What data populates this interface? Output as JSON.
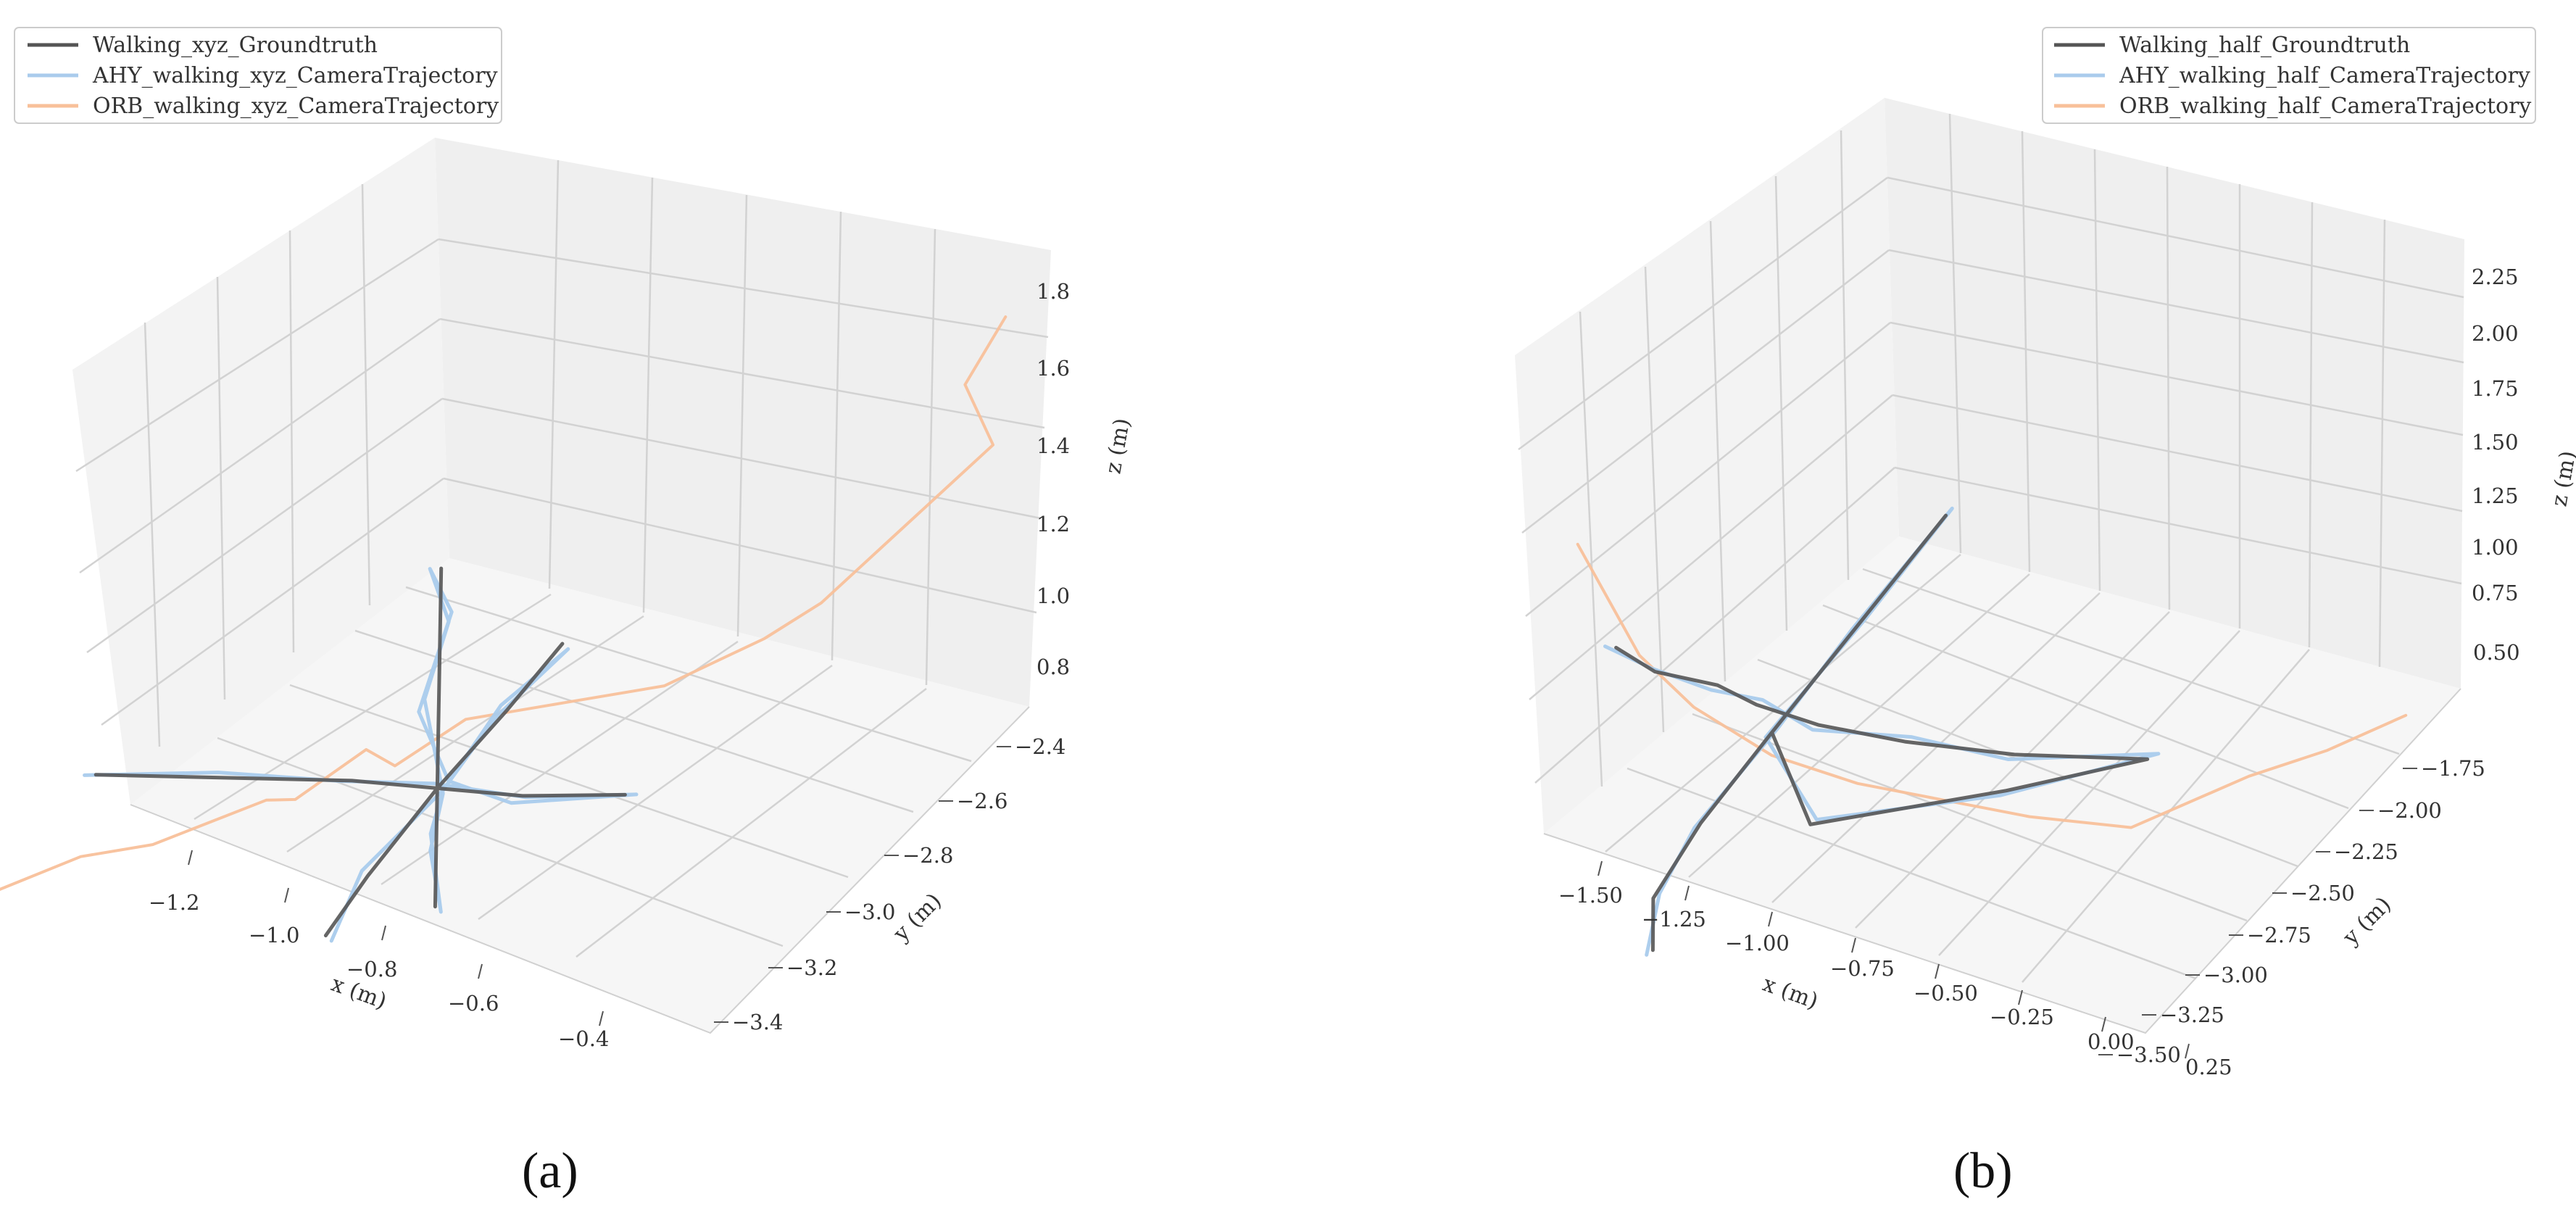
{
  "colors": {
    "groundtruth": "#555555",
    "ahy": "#a9cbec",
    "orb": "#f8c09a"
  },
  "chart_data": [
    {
      "type": "line",
      "panel_label": "(a)",
      "dimensions": 3,
      "legend": {
        "placement": "top-left",
        "entries": [
          "Walking_xyz_Groundtruth",
          "AHY_walking_xyz_CameraTrajectory",
          "ORB_walking_xyz_CameraTrajectory"
        ]
      },
      "xlabel": "x (m)",
      "ylabel": "y (m)",
      "zlabel": "z (m)",
      "xlim": [
        -1.35,
        -0.3
      ],
      "ylim": [
        -3.5,
        -2.35
      ],
      "zlim": [
        0.7,
        1.9
      ],
      "xticks": [
        "−1.2",
        "−1.0",
        "−0.8",
        "−0.6",
        "−0.4"
      ],
      "yticks": [
        "−2.4",
        "−2.6",
        "−2.8",
        "−3.0",
        "−3.2",
        "−3.4"
      ],
      "zticks": [
        "0.8",
        "1.0",
        "1.2",
        "1.4",
        "1.6",
        "1.8"
      ],
      "grid": true,
      "series": [
        {
          "name": "Walking_xyz_Groundtruth",
          "points": [
            [
              -1.2,
              -2.95,
              1.25
            ],
            [
              -1.05,
              -2.95,
              1.2
            ],
            [
              -0.9,
              -2.95,
              1.15
            ],
            [
              -0.8,
              -2.95,
              1.1
            ],
            [
              -0.7,
              -2.95,
              1.05
            ],
            [
              -0.58,
              -2.95,
              1.02
            ],
            [
              -0.7,
              -2.95,
              1.05
            ],
            [
              -0.8,
              -2.95,
              1.1
            ],
            [
              -0.8,
              -2.95,
              1.35
            ],
            [
              -0.8,
              -2.95,
              1.6
            ],
            [
              -0.8,
              -2.95,
              1.75
            ],
            [
              -0.8,
              -2.95,
              1.6
            ],
            [
              -0.8,
              -2.95,
              1.35
            ],
            [
              -0.8,
              -2.95,
              1.1
            ],
            [
              -0.8,
              -2.95,
              0.9
            ],
            [
              -0.8,
              -2.95,
              0.75
            ],
            [
              -0.8,
              -2.95,
              0.95
            ],
            [
              -0.8,
              -2.95,
              1.1
            ],
            [
              -0.8,
              -2.7,
              1.12
            ],
            [
              -0.8,
              -2.5,
              1.15
            ],
            [
              -0.8,
              -2.7,
              1.12
            ],
            [
              -0.8,
              -2.95,
              1.1
            ],
            [
              -0.8,
              -3.2,
              1.05
            ],
            [
              -0.8,
              -3.35,
              1.0
            ]
          ]
        },
        {
          "name": "AHY_walking_xyz_CameraTrajectory",
          "points": [
            [
              -1.21,
              -2.96,
              1.26
            ],
            [
              -1.06,
              -2.94,
              1.21
            ],
            [
              -0.91,
              -2.96,
              1.16
            ],
            [
              -0.81,
              -2.93,
              1.1
            ],
            [
              -0.69,
              -2.97,
              1.06
            ],
            [
              -0.57,
              -2.94,
              1.01
            ],
            [
              -0.71,
              -2.96,
              1.04
            ],
            [
              -0.79,
              -2.94,
              1.11
            ],
            [
              -0.82,
              -2.96,
              1.34
            ],
            [
              -0.79,
              -2.94,
              1.61
            ],
            [
              -0.81,
              -2.96,
              1.76
            ],
            [
              -0.79,
              -2.95,
              1.59
            ],
            [
              -0.82,
              -2.94,
              1.36
            ],
            [
              -0.79,
              -2.96,
              1.09
            ],
            [
              -0.81,
              -2.94,
              0.91
            ],
            [
              -0.79,
              -2.96,
              0.74
            ],
            [
              -0.81,
              -2.94,
              0.96
            ],
            [
              -0.79,
              -2.96,
              1.1
            ],
            [
              -0.81,
              -2.69,
              1.13
            ],
            [
              -0.79,
              -2.51,
              1.14
            ],
            [
              -0.81,
              -2.71,
              1.11
            ],
            [
              -0.79,
              -2.96,
              1.1
            ],
            [
              -0.81,
              -3.19,
              1.06
            ],
            [
              -0.79,
              -3.36,
              0.99
            ]
          ]
        },
        {
          "name": "ORB_walking_xyz_CameraTrajectory",
          "points": [
            [
              -1.3,
              -3.05,
              1.0
            ],
            [
              -1.2,
              -3.0,
              1.05
            ],
            [
              -1.1,
              -3.05,
              1.1
            ],
            [
              -1.0,
              -2.95,
              1.12
            ],
            [
              -0.95,
              -3.0,
              1.15
            ],
            [
              -0.9,
              -2.9,
              1.2
            ],
            [
              -0.85,
              -2.95,
              1.18
            ],
            [
              -0.8,
              -2.85,
              1.22
            ],
            [
              -0.7,
              -2.8,
              1.2
            ],
            [
              -0.6,
              -2.75,
              1.18
            ],
            [
              -0.5,
              -2.7,
              1.25
            ],
            [
              -0.45,
              -2.65,
              1.3
            ],
            [
              -0.4,
              -2.6,
              1.4
            ],
            [
              -0.35,
              -2.55,
              1.5
            ],
            [
              -0.3,
              -2.5,
              1.6
            ],
            [
              -0.35,
              -2.45,
              1.75
            ],
            [
              -0.32,
              -2.4,
              1.9
            ]
          ]
        }
      ]
    },
    {
      "type": "line",
      "panel_label": "(b)",
      "dimensions": 3,
      "legend": {
        "placement": "top-right",
        "entries": [
          "Walking_half_Groundtruth",
          "AHY_walking_half_CameraTrajectory",
          "ORB_walking_half_CameraTrajectory"
        ]
      },
      "xlabel": "x (m)",
      "ylabel": "y (m)",
      "zlabel": "z (m)",
      "xlim": [
        -1.65,
        0.3
      ],
      "ylim": [
        -3.6,
        -1.6
      ],
      "zlim": [
        0.4,
        2.3
      ],
      "xticks": [
        "−1.50",
        "−1.25",
        "−1.00",
        "−0.75",
        "−0.50",
        "−0.25",
        "0.00",
        "0.25"
      ],
      "yticks": [
        "−1.75",
        "−2.00",
        "−2.25",
        "−2.50",
        "−2.75",
        "−3.00",
        "−3.25",
        "−3.50"
      ],
      "zticks": [
        "0.50",
        "0.75",
        "1.00",
        "1.25",
        "1.50",
        "1.75",
        "2.00",
        "2.25"
      ],
      "grid": true,
      "series": [
        {
          "name": "Walking_half_Groundtruth",
          "points": [
            [
              -1.3,
              -2.2,
              1.55
            ],
            [
              -1.2,
              -2.25,
              1.45
            ],
            [
              -1.05,
              -2.3,
              1.38
            ],
            [
              -0.95,
              -2.35,
              1.3
            ],
            [
              -0.8,
              -2.4,
              1.2
            ],
            [
              -0.6,
              -2.45,
              1.1
            ],
            [
              -0.35,
              -2.5,
              1.0
            ],
            [
              -0.05,
              -2.55,
              0.92
            ],
            [
              -0.35,
              -2.55,
              0.88
            ],
            [
              -0.75,
              -2.6,
              0.9
            ],
            [
              -0.9,
              -2.4,
              1.2
            ],
            [
              -0.75,
              -2.3,
              1.55
            ],
            [
              -0.6,
              -2.2,
              1.9
            ],
            [
              -0.75,
              -2.3,
              1.55
            ],
            [
              -0.9,
              -2.4,
              1.2
            ],
            [
              -1.0,
              -2.55,
              0.95
            ],
            [
              -1.05,
              -2.7,
              0.75
            ],
            [
              -1.0,
              -2.85,
              0.62
            ]
          ]
        },
        {
          "name": "AHY_walking_half_CameraTrajectory",
          "points": [
            [
              -1.32,
              -2.21,
              1.57
            ],
            [
              -1.21,
              -2.24,
              1.46
            ],
            [
              -1.06,
              -2.31,
              1.37
            ],
            [
              -0.94,
              -2.34,
              1.31
            ],
            [
              -0.81,
              -2.41,
              1.19
            ],
            [
              -0.59,
              -2.44,
              1.11
            ],
            [
              -0.36,
              -2.51,
              0.99
            ],
            [
              -0.03,
              -2.54,
              0.93
            ],
            [
              -0.36,
              -2.56,
              0.87
            ],
            [
              -0.74,
              -2.59,
              0.91
            ],
            [
              -0.91,
              -2.41,
              1.19
            ],
            [
              -0.74,
              -2.29,
              1.56
            ],
            [
              -0.59,
              -2.19,
              1.92
            ],
            [
              -0.76,
              -2.31,
              1.54
            ],
            [
              -0.89,
              -2.39,
              1.21
            ],
            [
              -1.01,
              -2.56,
              0.94
            ],
            [
              -1.04,
              -2.69,
              0.76
            ],
            [
              -1.01,
              -2.86,
              0.61
            ]
          ]
        },
        {
          "name": "ORB_walking_half_CameraTrajectory",
          "points": [
            [
              -1.45,
              -2.0,
              1.9
            ],
            [
              -1.35,
              -2.1,
              1.7
            ],
            [
              -1.25,
              -2.2,
              1.5
            ],
            [
              -1.1,
              -2.3,
              1.3
            ],
            [
              -0.9,
              -2.4,
              1.1
            ],
            [
              -0.7,
              -2.45,
              0.95
            ],
            [
              -0.5,
              -2.5,
              0.85
            ],
            [
              -0.3,
              -2.55,
              0.75
            ],
            [
              -0.1,
              -2.5,
              0.6
            ],
            [
              0.05,
              -2.2,
              0.55
            ],
            [
              0.15,
              -2.0,
              0.48
            ],
            [
              0.25,
              -1.8,
              0.45
            ]
          ]
        }
      ]
    }
  ]
}
